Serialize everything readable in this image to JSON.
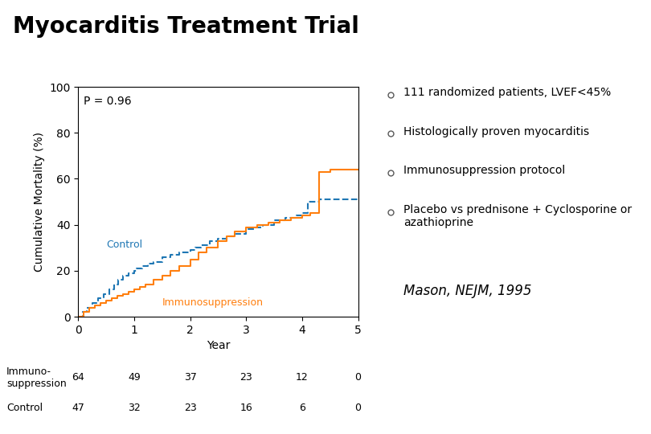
{
  "chart_data": {
    "type": "step",
    "title": "Myocarditis Treatment Trial",
    "notes": [
      "111 randomized patients, LVEF<45%",
      "Histologically proven myocarditis",
      "Immunosuppression protocol",
      "Placebo vs prednisone + Cyclosporine or\nazathioprine"
    ],
    "citation": "Mason, NEJM, 1995",
    "annotations": [
      "P = 0.96"
    ],
    "x_label": "Year",
    "y_label": "Cumulative Mortality (%)",
    "xlim": [
      0,
      5
    ],
    "xticks": [
      0,
      1,
      2,
      3,
      4,
      5
    ],
    "ylim": [
      0,
      100
    ],
    "yticks": [
      0,
      20,
      40,
      60,
      80,
      100
    ],
    "series": [
      {
        "name": "Control",
        "line_style": "dashed",
        "x": [
          0,
          0.08,
          0.15,
          0.25,
          0.35,
          0.45,
          0.55,
          0.65,
          0.72,
          0.8,
          0.9,
          1.0,
          1.05,
          1.15,
          1.25,
          1.35,
          1.5,
          1.65,
          1.8,
          2.0,
          2.1,
          2.2,
          2.35,
          2.5,
          2.65,
          2.8,
          3.0,
          3.15,
          3.3,
          3.5,
          3.7,
          3.9,
          4.0,
          4.1,
          4.3,
          4.5,
          5.0
        ],
        "values": [
          0,
          2,
          4,
          6,
          8,
          10,
          12,
          14,
          16,
          18,
          19,
          20,
          21,
          22,
          23,
          24,
          26,
          27,
          28,
          29,
          30,
          31,
          33,
          34,
          35,
          36,
          38,
          39,
          40,
          42,
          43,
          44,
          45,
          50,
          51,
          51,
          51
        ]
      },
      {
        "name": "Immunosuppression",
        "line_style": "solid",
        "x": [
          0,
          0.1,
          0.2,
          0.3,
          0.4,
          0.5,
          0.6,
          0.7,
          0.8,
          0.9,
          1.0,
          1.1,
          1.2,
          1.35,
          1.5,
          1.65,
          1.8,
          2.0,
          2.15,
          2.3,
          2.5,
          2.65,
          2.8,
          3.0,
          3.2,
          3.4,
          3.6,
          3.8,
          4.0,
          4.15,
          4.3,
          4.5,
          5.0
        ],
        "values": [
          0,
          2,
          4,
          5,
          6,
          7,
          8,
          9,
          10,
          11,
          12,
          13,
          14,
          16,
          18,
          20,
          22,
          25,
          28,
          30,
          33,
          35,
          37,
          39,
          40,
          41,
          42,
          43,
          44,
          45,
          63,
          64,
          64
        ]
      }
    ],
    "table": {
      "x": [
        0,
        1,
        2,
        3,
        4,
        5
      ],
      "rows": [
        {
          "name": "Immuno-\nsuppression",
          "values": [
            64,
            49,
            37,
            23,
            12,
            0
          ]
        },
        {
          "name": "Control",
          "values": [
            47,
            32,
            23,
            16,
            6,
            0
          ]
        }
      ]
    }
  }
}
